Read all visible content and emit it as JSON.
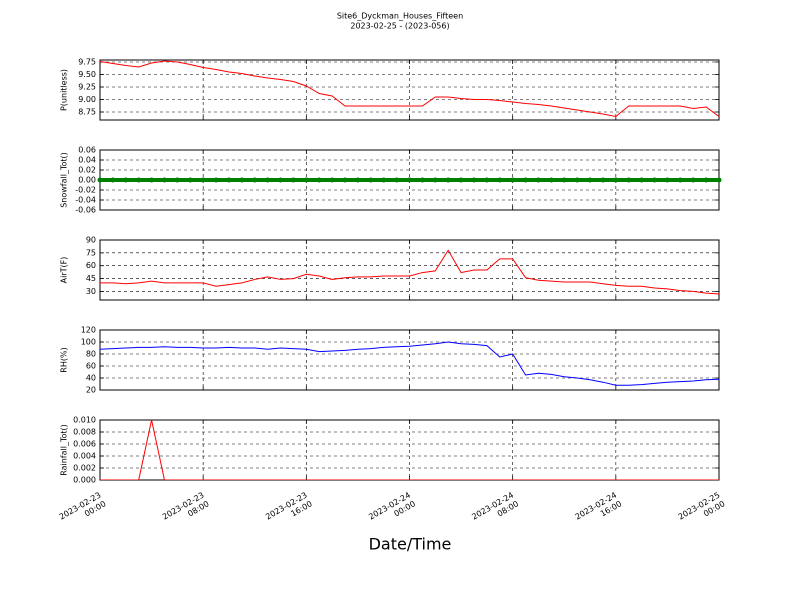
{
  "chart_data": {
    "type": "line",
    "title": "Site6_Dyckman_Houses_Fifteen",
    "subtitle": "2023-02-25 - (2023-056)",
    "x_label": "Date/Time",
    "xlim": [
      "2023-02-23 00:00",
      "2023-02-25 00:00"
    ],
    "xticks": [
      "2023-02-23 00:00",
      "2023-02-23 08:00",
      "2023-02-23 16:00",
      "2023-02-24 00:00",
      "2023-02-24 08:00",
      "2023-02-24 16:00",
      "2023-02-25 00:00"
    ],
    "x": [
      "2023-02-23 00:00",
      "2023-02-23 01:00",
      "2023-02-23 02:00",
      "2023-02-23 03:00",
      "2023-02-23 04:00",
      "2023-02-23 05:00",
      "2023-02-23 06:00",
      "2023-02-23 07:00",
      "2023-02-23 08:00",
      "2023-02-23 09:00",
      "2023-02-23 10:00",
      "2023-02-23 11:00",
      "2023-02-23 12:00",
      "2023-02-23 13:00",
      "2023-02-23 14:00",
      "2023-02-23 15:00",
      "2023-02-23 16:00",
      "2023-02-23 17:00",
      "2023-02-23 18:00",
      "2023-02-23 19:00",
      "2023-02-23 20:00",
      "2023-02-23 21:00",
      "2023-02-23 22:00",
      "2023-02-23 23:00",
      "2023-02-24 00:00",
      "2023-02-24 01:00",
      "2023-02-24 02:00",
      "2023-02-24 03:00",
      "2023-02-24 04:00",
      "2023-02-24 05:00",
      "2023-02-24 06:00",
      "2023-02-24 07:00",
      "2023-02-24 08:00",
      "2023-02-24 09:00",
      "2023-02-24 10:00",
      "2023-02-24 11:00",
      "2023-02-24 12:00",
      "2023-02-24 13:00",
      "2023-02-24 14:00",
      "2023-02-24 15:00",
      "2023-02-24 16:00",
      "2023-02-24 17:00",
      "2023-02-24 18:00",
      "2023-02-24 19:00",
      "2023-02-24 20:00",
      "2023-02-24 21:00",
      "2023-02-24 22:00",
      "2023-02-24 23:00",
      "2023-02-25 00:00"
    ],
    "grid": true,
    "panels": [
      {
        "y_label": "P(unitless)",
        "color": "#ff0000",
        "ylim": [
          8.59,
          9.79
        ],
        "yticks": [
          {
            "value": 8.75,
            "label": "8.75"
          },
          {
            "value": 9.0,
            "label": "9.00"
          },
          9.25,
          {
            "value": 9.5,
            "label": "9.50"
          },
          9.75
        ],
        "values": [
          9.76,
          9.72,
          9.68,
          9.65,
          9.73,
          9.77,
          9.75,
          9.7,
          9.64,
          9.6,
          9.55,
          9.52,
          9.47,
          9.43,
          9.4,
          9.36,
          9.27,
          9.12,
          9.07,
          8.87,
          8.87,
          8.87,
          8.87,
          8.87,
          8.87,
          8.87,
          9.05,
          9.05,
          9.02,
          9.0,
          9.0,
          8.98,
          8.95,
          8.92,
          8.9,
          8.87,
          8.83,
          8.79,
          8.75,
          8.71,
          8.66,
          8.87,
          8.87,
          8.87,
          8.87,
          8.87,
          8.82,
          8.85,
          8.66
        ]
      },
      {
        "y_label": "Snowfall_Tot()",
        "color": "#008000",
        "marker": true,
        "ylim": [
          -0.06,
          0.06
        ],
        "yticks": [
          -0.06,
          -0.04,
          -0.02,
          {
            "value": 0,
            "label": "0.00"
          },
          0.02,
          0.04,
          0.06
        ],
        "values": [
          0,
          0,
          0,
          0,
          0,
          0,
          0,
          0,
          0,
          0,
          0,
          0,
          0,
          0,
          0,
          0,
          0,
          0,
          0,
          0,
          0,
          0,
          0,
          0,
          0,
          0,
          0,
          0,
          0,
          0,
          0,
          0,
          0,
          0,
          0,
          0,
          0,
          0,
          0,
          0,
          0,
          0,
          0,
          0,
          0,
          0,
          0,
          0,
          0
        ]
      },
      {
        "y_label": "AirT(F)",
        "color": "#ff0000",
        "ylim": [
          20,
          90
        ],
        "yticks": [
          30,
          45,
          60,
          75,
          90
        ],
        "values": [
          40,
          40,
          39,
          40,
          42,
          40,
          40,
          40,
          40,
          36,
          38,
          40,
          44,
          47,
          44,
          45,
          50,
          48,
          44,
          46,
          47,
          47,
          48,
          48,
          48,
          52,
          54,
          78,
          52,
          55,
          55,
          68,
          68,
          46,
          43,
          42,
          41,
          41,
          41,
          39,
          37,
          36,
          36,
          34,
          33,
          31,
          30,
          28,
          27
        ]
      },
      {
        "y_label": "RH(%)",
        "color": "#0000ff",
        "ylim": [
          20,
          120
        ],
        "yticks": [
          20,
          40,
          60,
          80,
          100,
          120
        ],
        "values": [
          88,
          89,
          90,
          91,
          91,
          92,
          91,
          91,
          90,
          90,
          91,
          90,
          90,
          88,
          90,
          89,
          88,
          84,
          85,
          86,
          88,
          89,
          91,
          92,
          93,
          95,
          97,
          100,
          97,
          96,
          94,
          75,
          80,
          45,
          48,
          46,
          42,
          40,
          37,
          33,
          28,
          28,
          29,
          31,
          33,
          34,
          35,
          37,
          38
        ]
      },
      {
        "y_label": "Rainfall_Tot()",
        "color": "#ff0000",
        "ylim": [
          0,
          0.01
        ],
        "yticks": [
          {
            "value": 0,
            "label": "0.000"
          },
          {
            "value": 0.002,
            "label": "0.002"
          },
          {
            "value": 0.004,
            "label": "0.004"
          },
          {
            "value": 0.006,
            "label": "0.006"
          },
          {
            "value": 0.008,
            "label": "0.008"
          },
          {
            "value": 0.01,
            "label": "0.010"
          }
        ],
        "values": [
          0,
          0,
          0,
          0,
          0.01,
          0,
          0,
          0,
          0,
          0,
          0,
          0,
          0,
          0,
          0,
          0,
          0,
          0,
          0,
          0,
          0,
          0,
          0,
          0,
          0,
          0,
          0,
          0,
          0,
          0,
          0,
          0,
          0,
          0,
          0,
          0,
          0,
          0,
          0,
          0,
          0,
          0,
          0,
          0,
          0,
          0,
          0,
          0,
          0
        ]
      }
    ]
  }
}
